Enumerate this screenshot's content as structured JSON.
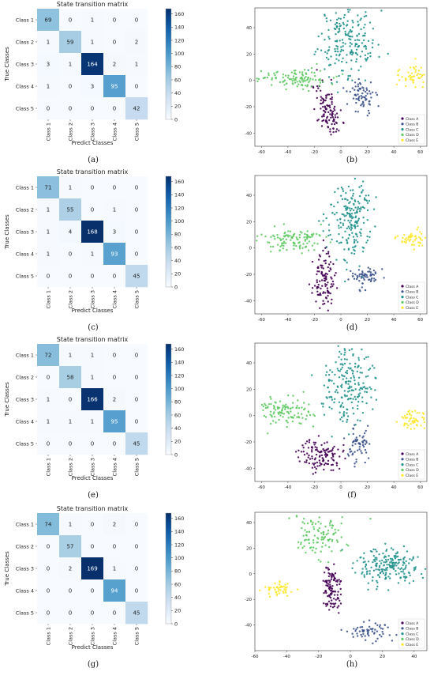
{
  "panels": [
    {
      "label": "(a)",
      "matrix_title": "State transition matrix",
      "matrix": [
        [
          69,
          0,
          1,
          0,
          0
        ],
        [
          1,
          59,
          1,
          0,
          2
        ],
        [
          3,
          1,
          164,
          2,
          1
        ],
        [
          1,
          0,
          3,
          95,
          0
        ],
        [
          0,
          0,
          0,
          0,
          42
        ]
      ],
      "scatter_label": "(b)",
      "scatter_seed": 11,
      "scatter_xticks": [
        "-60",
        "-40",
        "-20",
        "0",
        "20",
        "40",
        "60"
      ],
      "scatter_yticks": [
        "40",
        "20",
        "0",
        "-20",
        "-40"
      ]
    },
    {
      "label": "(c)",
      "matrix_title": "State transition matrix",
      "matrix": [
        [
          71,
          1,
          0,
          0,
          0
        ],
        [
          1,
          55,
          0,
          1,
          0
        ],
        [
          1,
          4,
          168,
          3,
          0
        ],
        [
          1,
          0,
          1,
          93,
          0
        ],
        [
          0,
          0,
          0,
          0,
          45
        ]
      ],
      "scatter_label": "(d)",
      "scatter_seed": 23,
      "scatter_xticks": [
        "-60",
        "-40",
        "-20",
        "0",
        "20",
        "40",
        "60"
      ],
      "scatter_yticks": [
        "40",
        "20",
        "0",
        "-20",
        "-40"
      ]
    },
    {
      "label": "(e)",
      "matrix_title": "State transition matrix",
      "matrix": [
        [
          72,
          1,
          1,
          0,
          0
        ],
        [
          0,
          58,
          1,
          0,
          0
        ],
        [
          1,
          0,
          166,
          2,
          0
        ],
        [
          1,
          1,
          1,
          95,
          0
        ],
        [
          0,
          0,
          0,
          0,
          45
        ]
      ],
      "scatter_label": "(f)",
      "scatter_seed": 37,
      "scatter_xticks": [
        "-60",
        "-40",
        "-20",
        "0",
        "20",
        "40",
        "60"
      ],
      "scatter_yticks": [
        "40",
        "20",
        "0",
        "-20",
        "-40"
      ]
    },
    {
      "label": "(g)",
      "matrix_title": "State transition matrix",
      "matrix": [
        [
          74,
          1,
          0,
          2,
          0
        ],
        [
          0,
          57,
          0,
          0,
          0
        ],
        [
          0,
          2,
          169,
          1,
          0
        ],
        [
          0,
          0,
          0,
          94,
          0
        ],
        [
          0,
          0,
          0,
          0,
          45
        ]
      ],
      "scatter_label": "(h)",
      "scatter_seed": 51,
      "scatter_xticks": [
        "-60",
        "-40",
        "-20",
        "0",
        "20",
        "40"
      ],
      "scatter_yticks": [
        "40",
        "20",
        "0",
        "-20",
        "-40"
      ]
    }
  ],
  "class_labels": [
    "Class 1",
    "Class 2",
    "Class 3",
    "Class 4",
    "Class 5"
  ],
  "xlabel": "Predict Classes",
  "ylabel": "True Classes",
  "colorbar_ticks": [
    "160",
    "140",
    "120",
    "100",
    "80",
    "60",
    "40",
    "20",
    "0"
  ],
  "legend": [
    {
      "name": "Class A",
      "color": "#440154"
    },
    {
      "name": "Class B",
      "color": "#3b528b"
    },
    {
      "name": "Class C",
      "color": "#21918c"
    },
    {
      "name": "Class D",
      "color": "#5ec962"
    },
    {
      "name": "Class E",
      "color": "#fde725"
    }
  ],
  "chart_data": [
    {
      "type": "heatmap",
      "title": "State transition matrix",
      "xlabel": "Predict Classes",
      "ylabel": "True Classes",
      "categories": [
        "Class 1",
        "Class 2",
        "Class 3",
        "Class 4",
        "Class 5"
      ],
      "values": [
        [
          69,
          0,
          1,
          0,
          0
        ],
        [
          1,
          59,
          1,
          0,
          2
        ],
        [
          3,
          1,
          164,
          2,
          1
        ],
        [
          1,
          0,
          3,
          95,
          0
        ],
        [
          0,
          0,
          0,
          0,
          42
        ]
      ],
      "colorbar_range": [
        0,
        168
      ]
    },
    {
      "type": "scatter",
      "series": [
        {
          "name": "Class A"
        },
        {
          "name": "Class B"
        },
        {
          "name": "Class C"
        },
        {
          "name": "Class D"
        },
        {
          "name": "Class E"
        }
      ],
      "xlim": [
        -65,
        65
      ],
      "ylim": [
        -50,
        55
      ],
      "legend": "bottom-right"
    },
    {
      "type": "heatmap",
      "title": "State transition matrix",
      "xlabel": "Predict Classes",
      "ylabel": "True Classes",
      "categories": [
        "Class 1",
        "Class 2",
        "Class 3",
        "Class 4",
        "Class 5"
      ],
      "values": [
        [
          71,
          1,
          0,
          0,
          0
        ],
        [
          1,
          55,
          0,
          1,
          0
        ],
        [
          1,
          4,
          168,
          3,
          0
        ],
        [
          1,
          0,
          1,
          93,
          0
        ],
        [
          0,
          0,
          0,
          0,
          45
        ]
      ],
      "colorbar_range": [
        0,
        168
      ]
    },
    {
      "type": "scatter",
      "series": [
        {
          "name": "Class A"
        },
        {
          "name": "Class B"
        },
        {
          "name": "Class C"
        },
        {
          "name": "Class D"
        },
        {
          "name": "Class E"
        }
      ],
      "xlim": [
        -65,
        65
      ],
      "ylim": [
        -50,
        55
      ],
      "legend": "bottom-right"
    },
    {
      "type": "heatmap",
      "title": "State transition matrix",
      "xlabel": "Predict Classes",
      "ylabel": "True Classes",
      "categories": [
        "Class 1",
        "Class 2",
        "Class 3",
        "Class 4",
        "Class 5"
      ],
      "values": [
        [
          72,
          1,
          1,
          0,
          0
        ],
        [
          0,
          58,
          1,
          0,
          0
        ],
        [
          1,
          0,
          166,
          2,
          0
        ],
        [
          1,
          1,
          1,
          95,
          0
        ],
        [
          0,
          0,
          0,
          0,
          45
        ]
      ],
      "colorbar_range": [
        0,
        168
      ]
    },
    {
      "type": "scatter",
      "series": [
        {
          "name": "Class A"
        },
        {
          "name": "Class B"
        },
        {
          "name": "Class C"
        },
        {
          "name": "Class D"
        },
        {
          "name": "Class E"
        }
      ],
      "xlim": [
        -65,
        65
      ],
      "ylim": [
        -50,
        55
      ],
      "legend": "bottom-right"
    },
    {
      "type": "heatmap",
      "title": "State transition matrix",
      "xlabel": "Predict Classes",
      "ylabel": "True Classes",
      "categories": [
        "Class 1",
        "Class 2",
        "Class 3",
        "Class 4",
        "Class 5"
      ],
      "values": [
        [
          74,
          1,
          0,
          2,
          0
        ],
        [
          0,
          57,
          0,
          0,
          0
        ],
        [
          0,
          2,
          169,
          1,
          0
        ],
        [
          0,
          0,
          0,
          94,
          0
        ],
        [
          0,
          0,
          0,
          0,
          45
        ]
      ],
      "colorbar_range": [
        0,
        169
      ]
    },
    {
      "type": "scatter",
      "series": [
        {
          "name": "Class A"
        },
        {
          "name": "Class B"
        },
        {
          "name": "Class C"
        },
        {
          "name": "Class D"
        },
        {
          "name": "Class E"
        }
      ],
      "xlim": [
        -65,
        50
      ],
      "ylim": [
        -60,
        50
      ],
      "legend": "bottom-right"
    }
  ]
}
